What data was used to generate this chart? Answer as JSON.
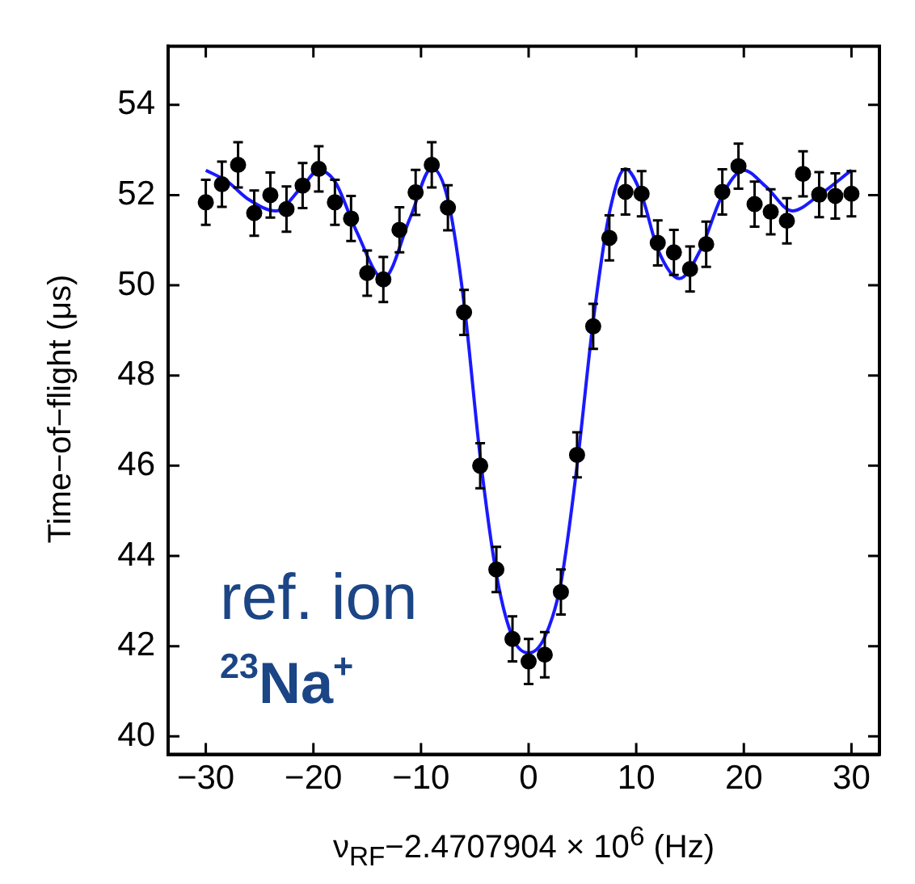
{
  "chart_data": {
    "type": "scatter",
    "xlabel": "ν$_{RF}$−2.4707904 × 10$^{6}$ (Hz)",
    "ylabel": "Time−of−flight (μs)",
    "annotations": [
      "ref. ion",
      "$^{23}$Na$^{+}$"
    ],
    "xlim": [
      -33.5,
      32.6
    ],
    "xticks": [
      -30,
      -20,
      -10,
      0,
      10,
      20,
      30
    ],
    "ylim": [
      39.6,
      55.3
    ],
    "yticks": [
      40,
      42,
      44,
      46,
      48,
      50,
      52,
      54
    ],
    "grid": false,
    "legend": false,
    "series": [
      {
        "color": "#000000",
        "marker": "circle",
        "x": [
          -30,
          -28.5,
          -27,
          -25.5,
          -24,
          -22.5,
          -21,
          -19.5,
          -18,
          -16.5,
          -15,
          -13.5,
          -12,
          -10.5,
          -9,
          -7.5,
          -6,
          -4.5,
          -3,
          -1.5,
          0,
          1.5,
          3,
          4.5,
          6,
          7.5,
          9,
          10.5,
          12,
          13.5,
          15,
          16.5,
          18,
          19.5,
          21,
          22.5,
          24,
          25.5,
          27,
          28.5,
          30
        ],
        "values": [
          51.84,
          52.24,
          52.67,
          51.6,
          52.0,
          51.69,
          52.21,
          52.58,
          51.84,
          51.48,
          50.27,
          50.13,
          51.23,
          52.06,
          52.67,
          51.72,
          49.4,
          46.0,
          43.7,
          42.16,
          41.66,
          41.81,
          43.2,
          46.24,
          49.09,
          51.05,
          52.07,
          52.03,
          50.94,
          50.73,
          50.36,
          50.91,
          52.07,
          52.64,
          51.8,
          51.63,
          51.43,
          52.47,
          52.01,
          51.98,
          52.03
        ],
        "errors": [
          0.5,
          0.5,
          0.5,
          0.5,
          0.5,
          0.5,
          0.5,
          0.5,
          0.5,
          0.5,
          0.5,
          0.5,
          0.5,
          0.5,
          0.5,
          0.5,
          0.5,
          0.5,
          0.5,
          0.5,
          0.5,
          0.5,
          0.5,
          0.5,
          0.5,
          0.5,
          0.5,
          0.5,
          0.5,
          0.5,
          0.5,
          0.5,
          0.5,
          0.5,
          0.5,
          0.5,
          0.5,
          0.5,
          0.5,
          0.5,
          0.5
        ]
      },
      {
        "type": "line",
        "color": "#1a1aff",
        "marker": "none",
        "line_style": "solid",
        "x": [
          -30,
          -28,
          -26,
          -23.5,
          -21,
          -19.5,
          -18,
          -16,
          -13.5,
          -11,
          -9,
          -7.5,
          -6,
          -4.5,
          -3,
          -1.5,
          0,
          1.5,
          3,
          4.5,
          6,
          7.5,
          9,
          10.5,
          12,
          14,
          16,
          18,
          20,
          22,
          24.5,
          27,
          30
        ],
        "values": [
          52.55,
          52.3,
          51.9,
          51.65,
          52.2,
          52.55,
          52.3,
          51.2,
          50.15,
          51.5,
          52.6,
          51.9,
          49.6,
          46.2,
          43.6,
          42.2,
          41.85,
          42.2,
          43.4,
          46.0,
          49.2,
          51.6,
          52.58,
          52.0,
          50.8,
          50.15,
          50.8,
          52.0,
          52.55,
          52.2,
          51.65,
          52.0,
          52.55
        ]
      }
    ]
  }
}
